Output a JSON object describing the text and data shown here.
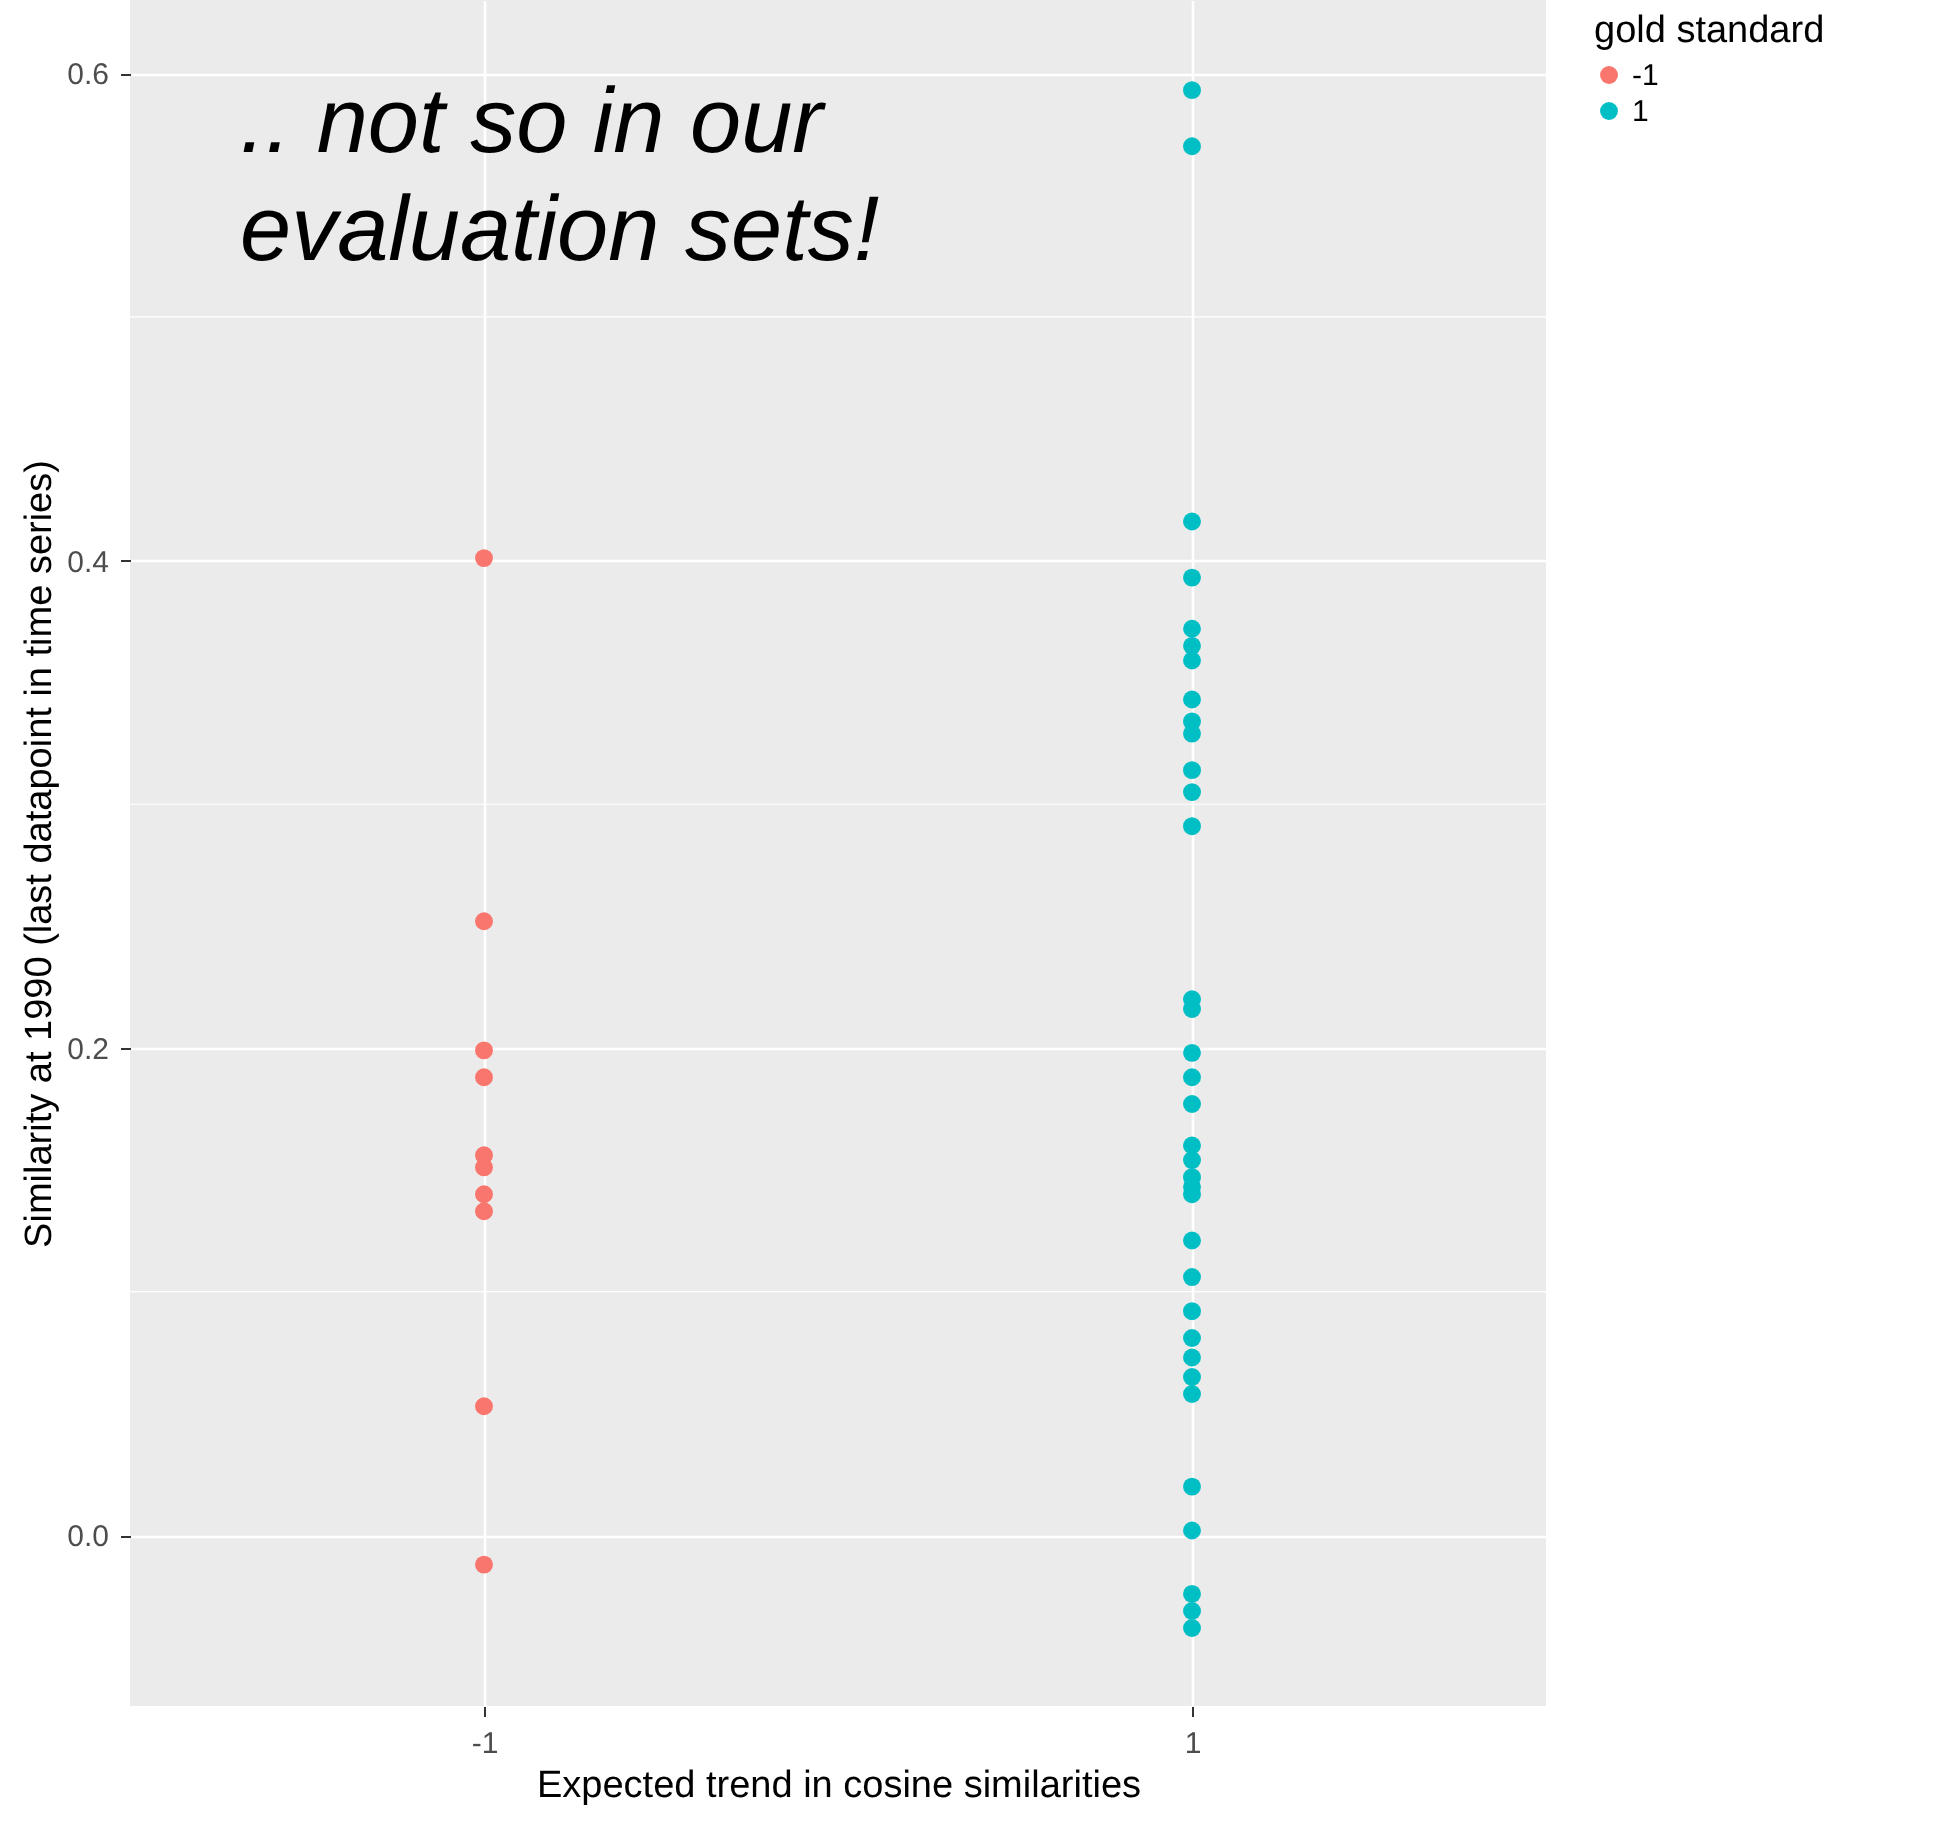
{
  "chart_data": {
    "type": "scatter",
    "xlabel": "Expected trend in cosine similarities",
    "ylabel": "Similarity at 1990 (last datapoint in time series)",
    "legend_title": "gold standard",
    "annotations": [
      ".. not so in our evaluation sets!"
    ],
    "categories": [
      "-1",
      "1"
    ],
    "series": [
      {
        "name": "-1",
        "color": "#f8766d",
        "x": [
          "-1",
          "-1",
          "-1",
          "-1",
          "-1",
          "-1",
          "-1",
          "-1",
          "-1",
          "-1"
        ],
        "values": [
          0.401,
          0.252,
          0.199,
          0.188,
          0.156,
          0.151,
          0.14,
          0.133,
          0.053,
          -0.012
        ]
      },
      {
        "name": "1",
        "color": "#00bfc4",
        "x": [
          "1",
          "1",
          "1",
          "1",
          "1",
          "1",
          "1",
          "1",
          "1",
          "1",
          "1",
          "1",
          "1",
          "1",
          "1",
          "1",
          "1",
          "1",
          "1",
          "1",
          "1",
          "1",
          "1",
          "1",
          "1",
          "1",
          "1",
          "1",
          "1",
          "1",
          "1",
          "1",
          "1",
          "1",
          "1"
        ],
        "values": [
          0.593,
          0.57,
          0.416,
          0.393,
          0.372,
          0.365,
          0.359,
          0.343,
          0.334,
          0.329,
          0.314,
          0.305,
          0.291,
          0.22,
          0.216,
          0.198,
          0.188,
          0.177,
          0.16,
          0.154,
          0.147,
          0.143,
          0.14,
          0.121,
          0.106,
          0.092,
          0.081,
          0.073,
          0.065,
          0.058,
          0.02,
          0.002,
          -0.024,
          -0.031,
          -0.038
        ]
      }
    ],
    "ylim": [
      -0.07,
      0.63
    ],
    "yticks": [
      {
        "value": 0,
        "label": "0.0"
      },
      {
        "value": 0.2,
        "label": "0.2"
      },
      {
        "value": 0.4,
        "label": "0.4"
      },
      {
        "value": 0.6,
        "label": "0.6"
      }
    ],
    "grid": true,
    "legend": "right",
    "marker": "circle"
  }
}
